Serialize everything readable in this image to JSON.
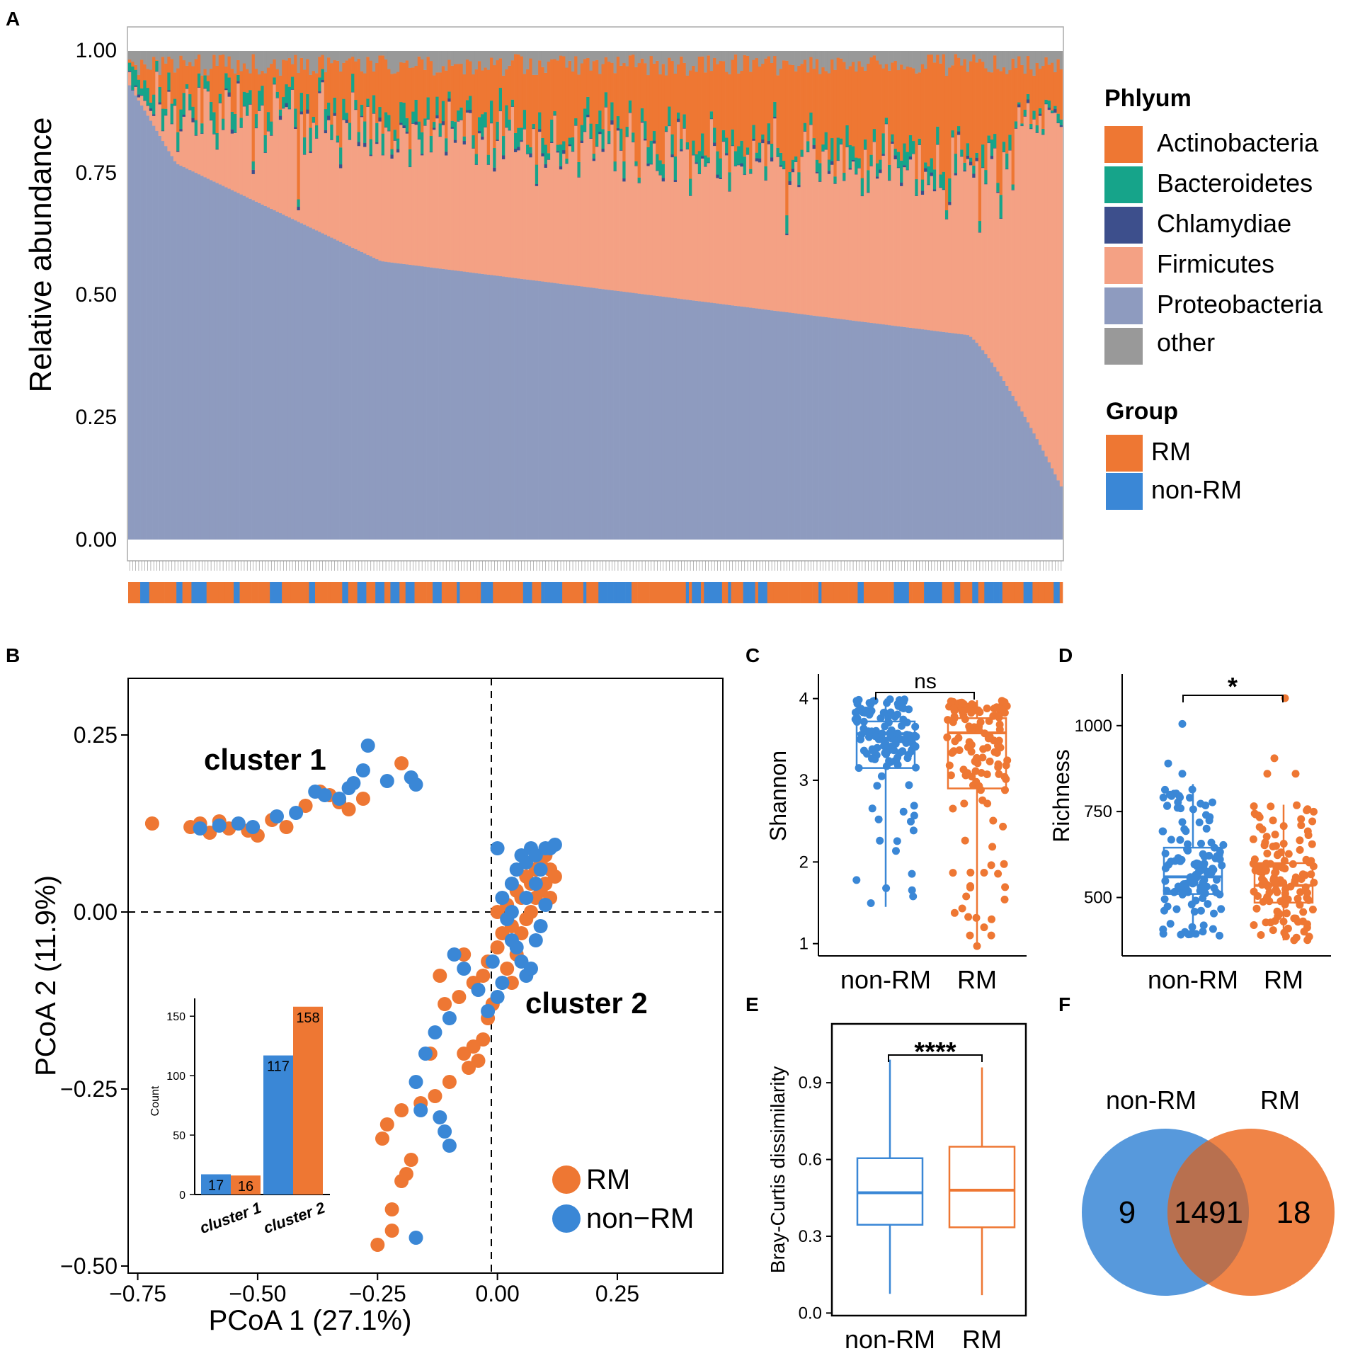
{
  "colors": {
    "actinobacteria": "#ee7733",
    "bacteroidetes": "#16a48a",
    "chlamydiae": "#3d4f8c",
    "firmicutes": "#f4a184",
    "proteobacteria": "#8e9bbf",
    "other": "#999999",
    "rm": "#ee7733",
    "nonrm": "#3a87d6"
  },
  "panel_labels": [
    "A",
    "B",
    "C",
    "D",
    "E",
    "F"
  ],
  "chart_data": [
    {
      "panel": "A",
      "type": "bar",
      "stacked": true,
      "ylabel": "Relative abundance",
      "yticks": [
        "0.00",
        "0.25",
        "0.50",
        "0.75",
        "1.00"
      ],
      "ylim": [
        0,
        1
      ],
      "n_samples": 310,
      "series": [
        {
          "name": "Proteobacteria",
          "description": "sorted descending from ~0.93 to ~0.10"
        },
        {
          "name": "Firmicutes"
        },
        {
          "name": "Chlamydiae"
        },
        {
          "name": "Bacteroidetes"
        },
        {
          "name": "Actinobacteria"
        },
        {
          "name": "other"
        }
      ],
      "legend_phylum_title": "Phlyum",
      "legend_phylum": [
        "Actinobacteria",
        "Bacteroidetes",
        "Chlamydiae",
        "Firmicutes",
        "Proteobacteria",
        "other"
      ],
      "legend_group_title": "Group",
      "legend_group": [
        "RM",
        "non-RM"
      ]
    },
    {
      "panel": "B",
      "type": "scatter",
      "xlabel": "PCoA 1 (27.1%)",
      "ylabel": "PCoA 2 (11.9%)",
      "xlim": [
        -0.77,
        0.47
      ],
      "ylim": [
        -0.51,
        0.33
      ],
      "xticks": [
        -0.75,
        -0.5,
        -0.25,
        0.0,
        0.25
      ],
      "xtick_labels": [
        "−0.75",
        "−0.50",
        "−0.25",
        "0.00",
        "0.25"
      ],
      "yticks": [
        -0.5,
        -0.25,
        0.0,
        0.25
      ],
      "ytick_labels": [
        "−0.50",
        "−0.25",
        "0.00",
        "0.25"
      ],
      "annotations": [
        "cluster 1",
        "cluster 2"
      ],
      "legend": [
        "RM",
        "non−RM"
      ],
      "series": [
        {
          "name": "RM",
          "points": [
            [
              -0.72,
              0.125
            ],
            [
              -0.64,
              0.12
            ],
            [
              -0.62,
              0.125
            ],
            [
              -0.6,
              0.112
            ],
            [
              -0.58,
              0.128
            ],
            [
              -0.56,
              0.118
            ],
            [
              -0.52,
              0.115
            ],
            [
              -0.5,
              0.108
            ],
            [
              -0.47,
              0.13
            ],
            [
              -0.44,
              0.12
            ],
            [
              -0.4,
              0.15
            ],
            [
              -0.37,
              0.17
            ],
            [
              -0.35,
              0.165
            ],
            [
              -0.33,
              0.155
            ],
            [
              -0.31,
              0.145
            ],
            [
              -0.28,
              0.16
            ],
            [
              -0.2,
              0.21
            ],
            [
              -0.24,
              -0.32
            ],
            [
              -0.23,
              -0.3
            ],
            [
              -0.2,
              -0.28
            ],
            [
              -0.22,
              -0.42
            ],
            [
              -0.2,
              -0.38
            ],
            [
              -0.19,
              -0.37
            ],
            [
              -0.18,
              -0.35
            ],
            [
              -0.25,
              -0.47
            ],
            [
              -0.22,
              -0.45
            ],
            [
              -0.16,
              -0.27
            ],
            [
              -0.13,
              -0.26
            ],
            [
              -0.1,
              -0.24
            ],
            [
              -0.07,
              -0.2
            ],
            [
              -0.05,
              -0.19
            ],
            [
              -0.03,
              -0.18
            ],
            [
              -0.02,
              -0.15
            ],
            [
              -0.01,
              -0.13
            ],
            [
              -0.08,
              -0.12
            ],
            [
              -0.05,
              -0.1
            ],
            [
              -0.03,
              -0.09
            ],
            [
              -0.02,
              -0.07
            ],
            [
              0.0,
              -0.05
            ],
            [
              0.01,
              -0.03
            ],
            [
              0.0,
              0.0
            ],
            [
              0.02,
              0.01
            ],
            [
              0.03,
              -0.02
            ],
            [
              0.04,
              0.03
            ],
            [
              0.05,
              0.02
            ],
            [
              0.06,
              0.05
            ],
            [
              0.07,
              0.04
            ],
            [
              0.08,
              0.06
            ],
            [
              0.09,
              0.07
            ],
            [
              0.1,
              0.08
            ],
            [
              0.11,
              0.06
            ],
            [
              0.12,
              0.05
            ],
            [
              0.08,
              0.02
            ],
            [
              0.06,
              -0.01
            ],
            [
              0.05,
              -0.03
            ],
            [
              0.04,
              -0.06
            ],
            [
              0.07,
              0.0
            ],
            [
              0.09,
              0.03
            ],
            [
              0.1,
              0.04
            ],
            [
              0.11,
              0.02
            ],
            [
              -0.14,
              -0.2
            ],
            [
              -0.04,
              -0.21
            ],
            [
              -0.06,
              -0.22
            ],
            [
              -0.11,
              -0.13
            ],
            [
              -0.12,
              -0.09
            ],
            [
              -0.07,
              -0.06
            ],
            [
              0.02,
              -0.08
            ],
            [
              0.03,
              -0.1
            ]
          ]
        },
        {
          "name": "non-RM",
          "points": [
            [
              -0.62,
              0.118
            ],
            [
              -0.58,
              0.122
            ],
            [
              -0.54,
              0.125
            ],
            [
              -0.51,
              0.12
            ],
            [
              -0.46,
              0.135
            ],
            [
              -0.42,
              0.14
            ],
            [
              -0.38,
              0.17
            ],
            [
              -0.36,
              0.165
            ],
            [
              -0.33,
              0.16
            ],
            [
              -0.31,
              0.175
            ],
            [
              -0.3,
              0.182
            ],
            [
              -0.28,
              0.2
            ],
            [
              -0.27,
              0.235
            ],
            [
              -0.23,
              0.185
            ],
            [
              -0.18,
              0.19
            ],
            [
              -0.17,
              0.18
            ],
            [
              0.0,
              0.09
            ],
            [
              -0.09,
              -0.06
            ],
            [
              -0.07,
              -0.08
            ],
            [
              -0.04,
              -0.11
            ],
            [
              -0.02,
              -0.14
            ],
            [
              -0.1,
              -0.15
            ],
            [
              -0.13,
              -0.17
            ],
            [
              -0.15,
              -0.2
            ],
            [
              -0.17,
              -0.24
            ],
            [
              -0.16,
              -0.28
            ],
            [
              -0.12,
              -0.29
            ],
            [
              -0.1,
              -0.33
            ],
            [
              -0.11,
              -0.31
            ],
            [
              -0.17,
              -0.46
            ],
            [
              0.01,
              0.02
            ],
            [
              0.03,
              0.04
            ],
            [
              0.04,
              0.06
            ],
            [
              0.05,
              0.08
            ],
            [
              0.06,
              0.07
            ],
            [
              0.07,
              0.09
            ],
            [
              0.08,
              0.08
            ],
            [
              0.09,
              0.06
            ],
            [
              0.1,
              0.09
            ],
            [
              0.11,
              0.09
            ],
            [
              0.12,
              0.095
            ],
            [
              0.02,
              -0.01
            ],
            [
              0.03,
              -0.04
            ],
            [
              0.04,
              -0.05
            ],
            [
              0.05,
              -0.07
            ],
            [
              0.06,
              -0.09
            ],
            [
              0.07,
              -0.08
            ],
            [
              0.08,
              -0.04
            ],
            [
              0.09,
              -0.02
            ],
            [
              0.1,
              0.01
            ],
            [
              0.01,
              -0.1
            ],
            [
              0.0,
              -0.12
            ],
            [
              -0.01,
              -0.07
            ],
            [
              0.03,
              0.0
            ],
            [
              0.06,
              0.02
            ],
            [
              0.08,
              0.04
            ]
          ]
        }
      ],
      "inset": {
        "type": "bar",
        "ylabel": "Count",
        "ylim": [
          0,
          165
        ],
        "yticks": [
          "0",
          "50",
          "100",
          "150"
        ],
        "categories": [
          "cluster 1",
          "cluster 2"
        ],
        "series": [
          {
            "name": "non-RM",
            "values": [
              17,
              117
            ]
          },
          {
            "name": "RM",
            "values": [
              16,
              158
            ]
          }
        ],
        "value_labels": [
          "17",
          "16",
          "117",
          "158"
        ]
      }
    },
    {
      "panel": "C",
      "type": "box",
      "ylabel": "Shannon",
      "ylim": [
        0.85,
        4.3
      ],
      "yticks": [
        "1",
        "2",
        "3",
        "4"
      ],
      "categories": [
        "non-RM",
        "RM"
      ],
      "boxes": [
        {
          "name": "non-RM",
          "q1": 3.15,
          "median": 3.57,
          "q3": 3.72,
          "whisker_low": 1.45,
          "whisker_high": 4.0
        },
        {
          "name": "RM",
          "q1": 2.9,
          "median": 3.58,
          "q3": 3.76,
          "whisker_low": 0.97,
          "whisker_high": 3.98
        }
      ],
      "significance": "ns"
    },
    {
      "panel": "D",
      "type": "box",
      "ylabel": "Richness",
      "ylim": [
        330,
        1150
      ],
      "yticks": [
        "500",
        "750",
        "1000"
      ],
      "categories": [
        "non-RM",
        "RM"
      ],
      "boxes": [
        {
          "name": "non-RM",
          "q1": 510,
          "median": 560,
          "q3": 645,
          "whisker_low": 385,
          "whisker_high": 830
        },
        {
          "name": "RM",
          "q1": 485,
          "median": 535,
          "q3": 600,
          "whisker_low": 375,
          "whisker_high": 770
        }
      ],
      "significance": "*"
    },
    {
      "panel": "E",
      "type": "box",
      "ylabel": "Bray-Curtis dissimilarity",
      "ylim": [
        -0.01,
        1.13
      ],
      "yticks": [
        "0.0",
        "0.3",
        "0.6",
        "0.9"
      ],
      "categories": [
        "non-RM",
        "RM"
      ],
      "boxes": [
        {
          "name": "non-RM",
          "q1": 0.345,
          "median": 0.47,
          "q3": 0.605,
          "whisker_low": 0.075,
          "whisker_high": 0.99
        },
        {
          "name": "RM",
          "q1": 0.335,
          "median": 0.48,
          "q3": 0.65,
          "whisker_low": 0.07,
          "whisker_high": 0.96
        }
      ],
      "significance": "****"
    },
    {
      "panel": "F",
      "type": "venn",
      "sets": [
        "non-RM",
        "RM"
      ],
      "only_nonrm": "9",
      "shared": "1491",
      "only_rm": "18"
    }
  ]
}
